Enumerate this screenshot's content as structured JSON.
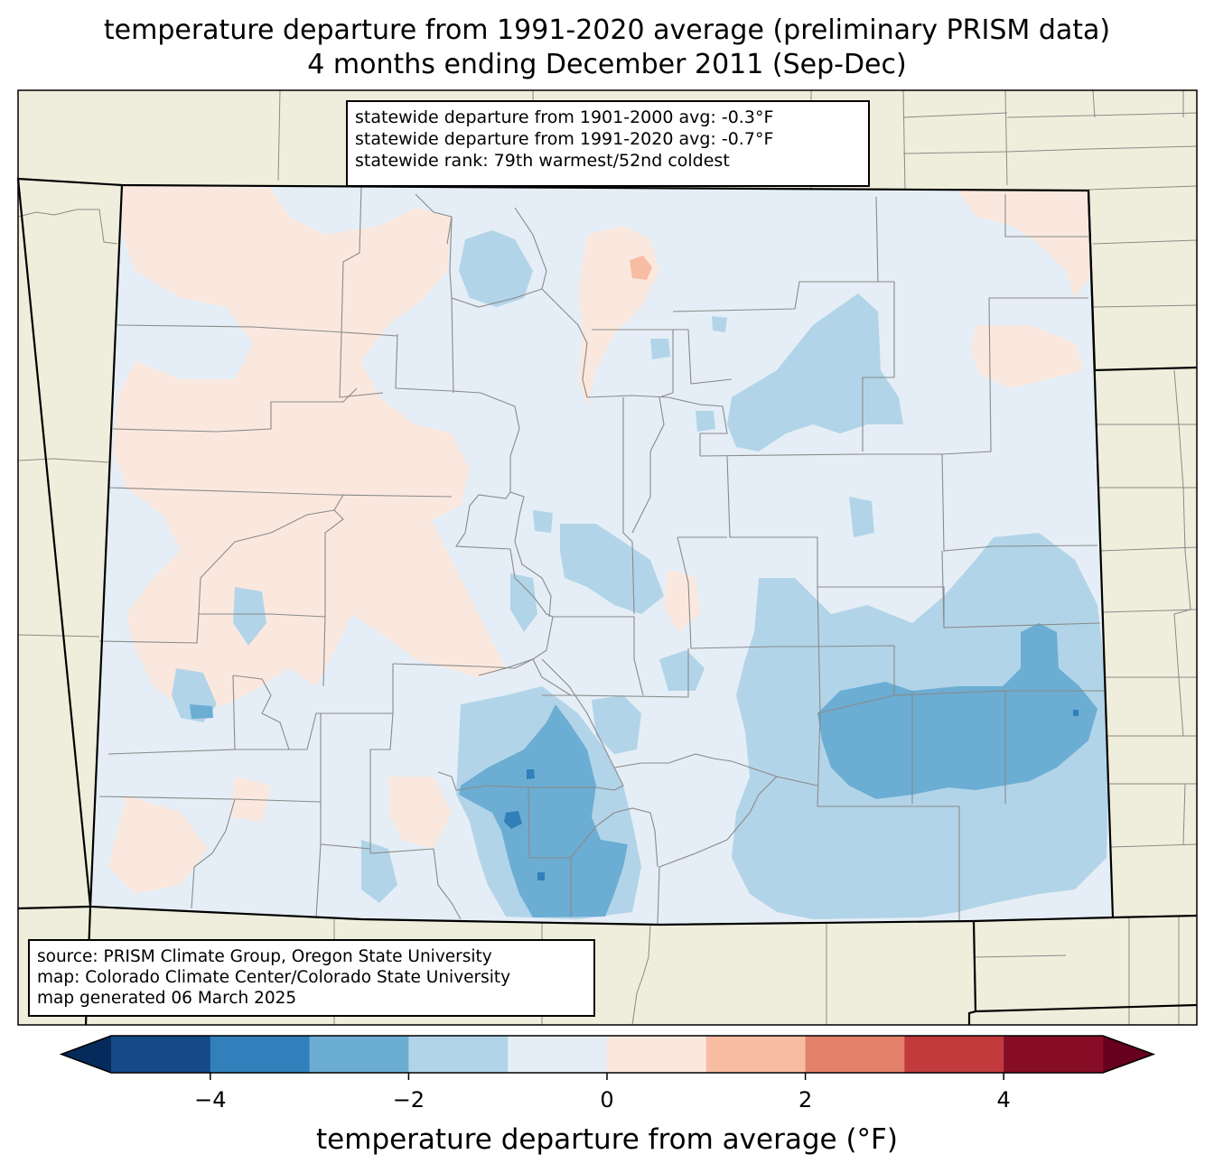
{
  "title": {
    "line1": "temperature departure from 1991-2020 average (preliminary PRISM data)",
    "line2": "4 months ending December 2011 (Sep-Dec)"
  },
  "stats": {
    "line1": "statewide departure from 1901-2000 avg: -0.3°F",
    "line2": "statewide departure from 1991-2020 avg: -0.7°F",
    "line3": "statewide rank: 79th warmest/52nd coldest"
  },
  "source": {
    "line1": "source: PRISM Climate Group, Oregon State University",
    "line2": "map: Colorado Climate Center/Colorado State University",
    "line3": "map generated 06 March 2025"
  },
  "colorbar": {
    "label": "temperature departure from average (°F)",
    "min": -5,
    "max": 5,
    "ticks": [
      {
        "value": -4,
        "label": "−4"
      },
      {
        "value": -2,
        "label": "−2"
      },
      {
        "value": 0,
        "label": "0"
      },
      {
        "value": 2,
        "label": "2"
      },
      {
        "value": 4,
        "label": "4"
      }
    ],
    "bins": [
      {
        "from": -5,
        "to": -4,
        "color": "#144a87"
      },
      {
        "from": -4,
        "to": -3,
        "color": "#317fbb"
      },
      {
        "from": -3,
        "to": -2,
        "color": "#6badd3"
      },
      {
        "from": -2,
        "to": -1,
        "color": "#b2d4e8"
      },
      {
        "from": -1,
        "to": 0,
        "color": "#e5eef6"
      },
      {
        "from": 0,
        "to": 1,
        "color": "#fae8df"
      },
      {
        "from": 1,
        "to": 2,
        "color": "#f8bca2"
      },
      {
        "from": 2,
        "to": 3,
        "color": "#e2806a"
      },
      {
        "from": 3,
        "to": 4,
        "color": "#c23a3c"
      },
      {
        "from": 4,
        "to": 5,
        "color": "#870d27"
      }
    ],
    "under_color": "#062b5b",
    "over_color": "#67001f"
  },
  "map": {
    "background_color": "#efeedc",
    "state_fill": "#e5eef6"
  }
}
